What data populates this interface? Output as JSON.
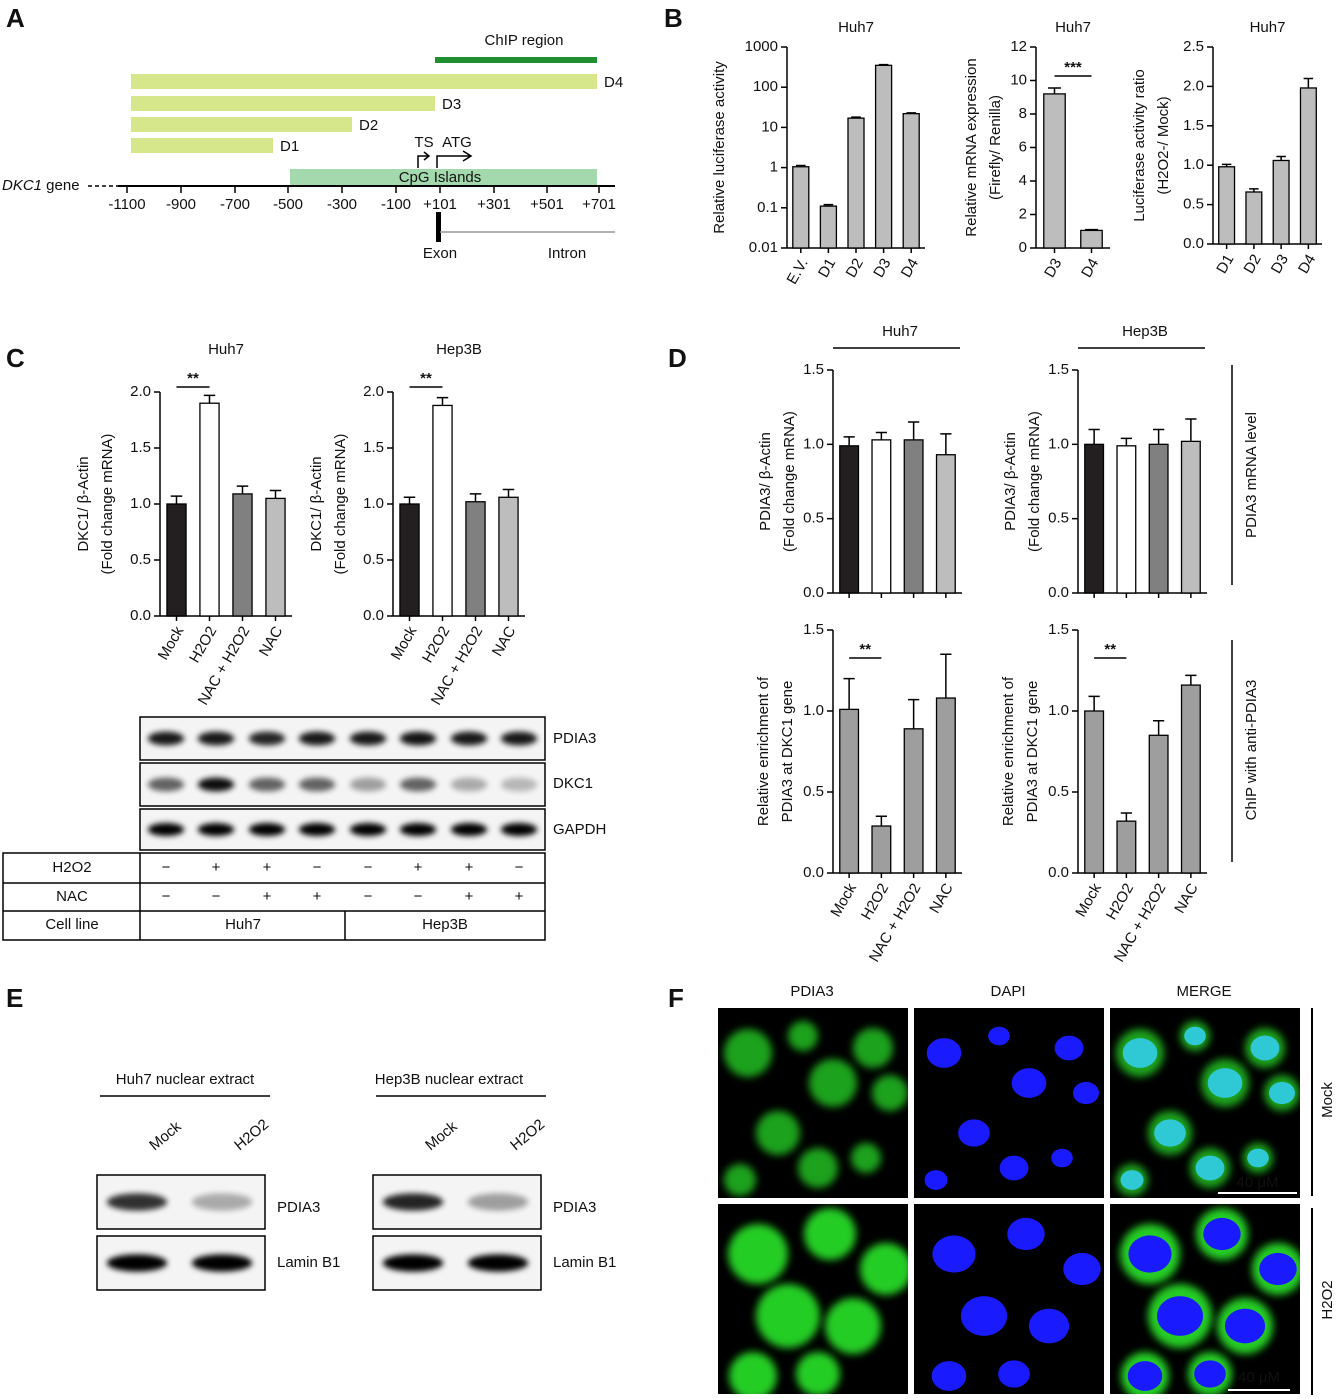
{
  "panel_labels": [
    "A",
    "B",
    "C",
    "D",
    "E",
    "F"
  ],
  "panel_a": {
    "chip_region": "ChIP region",
    "constructs": [
      "D4",
      "D3",
      "D2",
      "D1"
    ],
    "tss": "TS",
    "atg": "ATG",
    "cpg": "CpG Islands",
    "gene": "DKC1",
    "gene_suffix": " gene",
    "positions": [
      "-1100",
      "-900",
      "-700",
      "-500",
      "-300",
      "-100",
      "+101",
      "+301",
      "+501",
      "+701"
    ],
    "exon": "Exon",
    "intron": "Intron"
  },
  "chart_data": [
    {
      "type": "bar",
      "title": "Huh7",
      "log": true,
      "ylabel": [
        "Relative luciferase activity"
      ],
      "categories": [
        "E.V.",
        "D1",
        "D2",
        "D3",
        "D4"
      ],
      "values": [
        1.05,
        0.11,
        17,
        350,
        22
      ],
      "errors": [
        0.08,
        0.01,
        1,
        15,
        1
      ],
      "color": "#bdbdbd",
      "ylim": [
        0.01,
        1000
      ],
      "yticks": [
        0.01,
        0.1,
        1,
        10,
        100,
        1000
      ]
    },
    {
      "type": "bar",
      "title": "Huh7",
      "ylabel": [
        "Relative mRNA expression",
        "(Firefly/ Renilla)"
      ],
      "categories": [
        "D3",
        "D4"
      ],
      "values": [
        9.2,
        1.05
      ],
      "errors": [
        0.35,
        0.05
      ],
      "color": "#bdbdbd",
      "ylim": [
        0,
        12
      ],
      "yticks": [
        0,
        2,
        4,
        6,
        8,
        10,
        12
      ],
      "annotation": "***"
    },
    {
      "type": "bar",
      "title": "Huh7",
      "ylabel": [
        "Luciferase activity ratio",
        "(H2O2-/ Mock)"
      ],
      "categories": [
        "D1",
        "D2",
        "D3",
        "D4"
      ],
      "values": [
        0.98,
        0.66,
        1.06,
        1.98
      ],
      "errors": [
        0.03,
        0.04,
        0.05,
        0.12
      ],
      "color": "#bdbdbd",
      "ylim": [
        0,
        2.5
      ],
      "yticks": [
        {
          "value": 0,
          "label": "0.0"
        },
        0.5,
        {
          "value": 1,
          "label": "1.0"
        },
        1.5,
        {
          "value": 2,
          "label": "2.0"
        },
        2.5
      ]
    },
    {
      "type": "bar",
      "title": "Huh7",
      "ylabel": [
        "DKC1/ β-Actin",
        "(Fold change mRNA)"
      ],
      "categories": [
        "Mock",
        "H2O2",
        "NAC + H2O2",
        "NAC"
      ],
      "values": [
        1.0,
        1.9,
        1.09,
        1.05
      ],
      "errors": [
        0.07,
        0.07,
        0.07,
        0.07
      ],
      "colors": [
        "#231f20",
        "#ffffff",
        "#808080",
        "#bdbdbd"
      ],
      "ylim": [
        0,
        2
      ],
      "yticks": [
        {
          "value": 0,
          "label": "0.0"
        },
        0.5,
        {
          "value": 1,
          "label": "1.0"
        },
        1.5,
        {
          "value": 2,
          "label": "2.0"
        }
      ],
      "annotation": "**"
    },
    {
      "type": "bar",
      "title": "Hep3B",
      "ylabel": [
        "DKC1/ β-Actin",
        "(Fold change mRNA)"
      ],
      "categories": [
        "Mock",
        "H2O2",
        "NAC + H2O2",
        "NAC"
      ],
      "values": [
        1.0,
        1.88,
        1.02,
        1.06
      ],
      "errors": [
        0.06,
        0.07,
        0.07,
        0.07
      ],
      "colors": [
        "#231f20",
        "#ffffff",
        "#808080",
        "#bdbdbd"
      ],
      "ylim": [
        0,
        2
      ],
      "yticks": [
        {
          "value": 0,
          "label": "0.0"
        },
        0.5,
        {
          "value": 1,
          "label": "1.0"
        },
        1.5,
        {
          "value": 2,
          "label": "2.0"
        }
      ],
      "annotation": "**"
    },
    {
      "type": "bar",
      "ylabel": [
        "PDIA3/ β-Actin",
        "(Fold change mRNA)"
      ],
      "categories": [
        null,
        null,
        null,
        null
      ],
      "values": [
        0.99,
        1.03,
        1.03,
        0.93
      ],
      "errors": [
        0.06,
        0.05,
        0.12,
        0.14
      ],
      "colors": [
        "#231f20",
        "#ffffff",
        "#808080",
        "#bdbdbd"
      ],
      "ylim": [
        0,
        1.5
      ],
      "yticks": [
        {
          "value": 0,
          "label": "0.0"
        },
        0.5,
        {
          "value": 1,
          "label": "1.0"
        },
        1.5
      ]
    },
    {
      "type": "bar",
      "ylabel": [
        "PDIA3/ β-Actin",
        "(Fold change mRNA)"
      ],
      "categories": [
        null,
        null,
        null,
        null
      ],
      "values": [
        1.0,
        0.99,
        1.0,
        1.02
      ],
      "errors": [
        0.1,
        0.05,
        0.1,
        0.15
      ],
      "colors": [
        "#231f20",
        "#ffffff",
        "#808080",
        "#bdbdbd"
      ],
      "ylim": [
        0,
        1.5
      ],
      "yticks": [
        {
          "value": 0,
          "label": "0.0"
        },
        0.5,
        {
          "value": 1,
          "label": "1.0"
        },
        1.5
      ]
    },
    {
      "type": "bar",
      "ylabel": [
        "Relative enrichment of",
        "PDIA3 at DKC1 gene"
      ],
      "categories": [
        "Mock",
        "H2O2",
        "NAC + H2O2",
        "NAC"
      ],
      "values": [
        1.01,
        0.29,
        0.89,
        1.08
      ],
      "errors": [
        0.19,
        0.06,
        0.18,
        0.27
      ],
      "color": "#9e9e9e",
      "ylim": [
        0,
        1.5
      ],
      "yticks": [
        {
          "value": 0,
          "label": "0.0"
        },
        0.5,
        {
          "value": 1,
          "label": "1.0"
        },
        1.5
      ],
      "annotation": "**"
    },
    {
      "type": "bar",
      "ylabel": [
        "Relative enrichment of",
        "PDIA3 at DKC1 gene"
      ],
      "categories": [
        "Mock",
        "H2O2",
        "NAC + H2O2",
        "NAC"
      ],
      "values": [
        1.0,
        0.32,
        0.85,
        1.16
      ],
      "errors": [
        0.09,
        0.05,
        0.09,
        0.06
      ],
      "color": "#9e9e9e",
      "ylim": [
        0,
        1.5
      ],
      "yticks": [
        {
          "value": 0,
          "label": "0.0"
        },
        0.5,
        {
          "value": 1,
          "label": "1.0"
        },
        1.5
      ],
      "annotation": "**"
    }
  ],
  "panel_c_blot": {
    "proteins": [
      "PDIA3",
      "DKC1",
      "GAPDH"
    ],
    "rows": [
      {
        "label": "H2O2",
        "signs": [
          "−",
          "+",
          "+",
          "−",
          "−",
          "+",
          "+",
          "−"
        ]
      },
      {
        "label": "NAC",
        "signs": [
          "−",
          "−",
          "+",
          "+",
          "−",
          "−",
          "+",
          "+"
        ]
      }
    ],
    "cell_line_label": "Cell line",
    "cell_lines": [
      "Huh7",
      "Hep3B"
    ]
  },
  "panel_d": {
    "groups": [
      "Huh7",
      "Hep3B"
    ],
    "side_labels": [
      "PDIA3 mRNA level",
      "ChIP with anti-PDIA3"
    ]
  },
  "panel_e": {
    "titles": [
      "Huh7 nuclear extract",
      "Hep3B nuclear extract"
    ],
    "lanes": [
      "Mock",
      "H2O2"
    ],
    "proteins": [
      "PDIA3",
      "Lamin B1"
    ]
  },
  "panel_f": {
    "columns": [
      "PDIA3",
      "DAPI",
      "MERGE"
    ],
    "rows": [
      "Mock",
      "H2O2"
    ],
    "scale_bar": "40 μM"
  }
}
